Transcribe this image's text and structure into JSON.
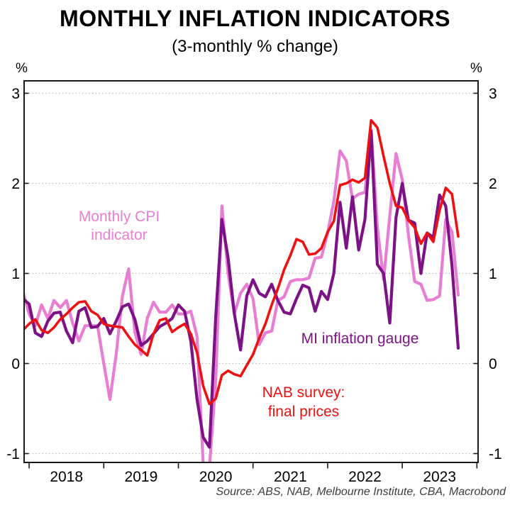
{
  "header": {
    "title": "MONTHLY INFLATION INDICATORS",
    "subtitle": "(3-monthly % change)"
  },
  "source_note": "Source: ABS, NAB, Melbourne Institute, CBA, Macrobond",
  "chart_data": {
    "type": "line",
    "title": "MONTHLY INFLATION INDICATORS",
    "subtitle": "(3-monthly % change)",
    "x_start": "2017-12",
    "x_frequency": "monthly",
    "x_year_labels": [
      "2018",
      "2019",
      "2020",
      "2021",
      "2022",
      "2023"
    ],
    "y_ticks": [
      3,
      2,
      1,
      0,
      -1
    ],
    "y_unit_left": "%",
    "y_unit_right": "%",
    "ylim": [
      -1.11,
      3.13
    ],
    "grid": "horizontal-dotted",
    "legend_position": "inline-annotations",
    "series": [
      {
        "key": "monthly-cpi",
        "name": "Monthly CPI indicator",
        "color": "#e87ed3",
        "width": 4.2,
        "values": [
          0.8,
          0.55,
          0.42,
          0.65,
          0.5,
          0.7,
          0.62,
          0.7,
          0.45,
          0.25,
          0.42,
          0.42,
          0.42,
          0.0,
          -0.4,
          0.1,
          0.75,
          1.05,
          0.35,
          0.1,
          0.5,
          0.68,
          0.57,
          0.57,
          0.65,
          0.55,
          0.55,
          0.58,
          0.3,
          -1.12,
          -1.15,
          -0.2,
          1.75,
          1.0,
          0.55,
          0.78,
          0.88,
          0.72,
          0.21,
          0.34,
          0.36,
          0.7,
          0.74,
          0.91,
          0.93,
          0.93,
          0.95,
          1.17,
          1.18,
          1.45,
          1.8,
          2.36,
          2.25,
          1.83,
          1.88,
          1.9,
          2.6,
          1.51,
          0.93,
          1.64,
          2.33,
          2.04,
          1.43,
          0.91,
          0.88,
          0.7,
          0.71,
          0.75,
          1.6,
          1.46,
          0.76
        ]
      },
      {
        "key": "mi-gauge",
        "name": "MI inflation gauge",
        "color": "#7d1287",
        "width": 4.2,
        "values": [
          0.72,
          0.66,
          0.34,
          0.3,
          0.47,
          0.56,
          0.57,
          0.36,
          0.23,
          0.58,
          0.62,
          0.4,
          0.41,
          0.5,
          0.33,
          0.47,
          0.63,
          0.66,
          0.49,
          0.2,
          0.25,
          0.33,
          0.41,
          0.45,
          0.5,
          0.65,
          0.58,
          0.25,
          -0.4,
          -0.82,
          -0.93,
          0.51,
          1.6,
          1.17,
          0.55,
          0.15,
          0.75,
          0.93,
          0.78,
          0.74,
          0.88,
          0.7,
          0.57,
          0.55,
          0.72,
          0.87,
          0.84,
          0.58,
          0.8,
          0.71,
          1.0,
          1.79,
          1.28,
          1.85,
          1.26,
          1.6,
          2.58,
          1.1,
          1.0,
          0.45,
          1.62,
          2.0,
          1.59,
          1.56,
          1.0,
          1.45,
          1.4,
          1.87,
          1.75,
          1.09,
          0.17
        ]
      },
      {
        "key": "nab-final-prices",
        "name": "NAB survey: final prices",
        "color": "#ee1111",
        "width": 3.6,
        "values": [
          0.37,
          0.44,
          0.49,
          0.37,
          0.34,
          0.4,
          0.49,
          0.55,
          0.62,
          0.68,
          0.69,
          0.58,
          0.54,
          0.44,
          0.42,
          0.41,
          0.4,
          0.3,
          0.21,
          0.15,
          0.09,
          0.33,
          0.48,
          0.5,
          0.35,
          0.4,
          0.44,
          0.33,
          0.12,
          -0.25,
          -0.45,
          -0.39,
          -0.13,
          -0.08,
          -0.12,
          -0.14,
          -0.02,
          0.1,
          0.28,
          0.44,
          0.65,
          0.83,
          1.04,
          1.2,
          1.38,
          1.35,
          1.21,
          1.22,
          1.28,
          1.46,
          1.58,
          1.98,
          2.0,
          2.04,
          2.01,
          2.06,
          2.7,
          2.62,
          2.3,
          2.0,
          1.75,
          1.73,
          1.59,
          1.51,
          1.33,
          1.45,
          1.35,
          1.7,
          1.95,
          1.88,
          1.41
        ]
      }
    ],
    "labels": {
      "cpi": {
        "line1": "Monthly CPI",
        "line2": "indicator"
      },
      "mi": {
        "text": "MI inflation gauge"
      },
      "nab": {
        "line1": "NAB survey:",
        "line2": "final prices"
      }
    }
  }
}
